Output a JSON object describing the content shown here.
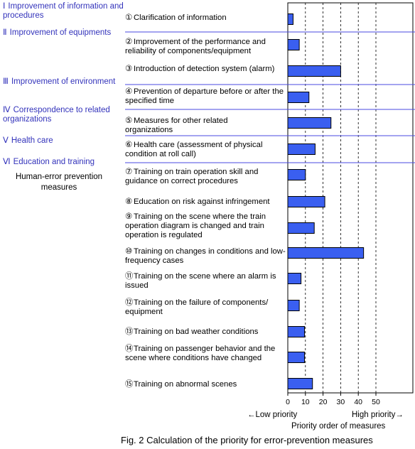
{
  "categories": [
    {
      "num": "Ⅰ",
      "label": "Improvement of information and procedures"
    },
    {
      "num": "Ⅱ",
      "label": "Improvement of equipments"
    },
    {
      "num": "Ⅲ",
      "label": "Improvement of environment"
    },
    {
      "num": "Ⅳ",
      "label": "Correspondence to related organizations"
    },
    {
      "num": "Ⅴ",
      "label": "Health care"
    },
    {
      "num": "Ⅵ",
      "label": "Education and training"
    }
  ],
  "group_label": "Human-error prevention measures",
  "measures": [
    {
      "num": "①",
      "label": "Clarification of information"
    },
    {
      "num": "②",
      "label": "Improvement of the performance and reliability of components/equipment"
    },
    {
      "num": "③",
      "label": "Introduction of detection system (alarm)"
    },
    {
      "num": "④",
      "label": "Prevention of departure before or after the specified time"
    },
    {
      "num": "⑤",
      "label": "Measures for other related organizations"
    },
    {
      "num": "⑥",
      "label": "Health care (assessment of physical condition at roll call)"
    },
    {
      "num": "⑦",
      "label": "Training on train operation skill and guidance on correct procedures"
    },
    {
      "num": "⑧",
      "label": "Education on risk against infringement"
    },
    {
      "num": "⑨",
      "label": "Training on the scene where the train operation diagram is changed and train operation is regulated"
    },
    {
      "num": "⑩",
      "label": "Training on changes in conditions and low-frequency cases"
    },
    {
      "num": "⑪",
      "label": "Training on the scene where an alarm is issued"
    },
    {
      "num": "⑫",
      "label": "Training on the failure of components/ equipment"
    },
    {
      "num": "⑬",
      "label": "Training on bad weather conditions"
    },
    {
      "num": "⑭",
      "label": "Training on passenger behavior and the scene where conditions have changed"
    },
    {
      "num": "⑮",
      "label": "Training on abnormal scenes"
    }
  ],
  "axis": {
    "low_label": "Low priority",
    "high_label": "High priority",
    "title": "Priority order of measures"
  },
  "caption": "Fig. 2  Calculation of the priority for error-prevention measures",
  "colors": {
    "bar": "#3a5ff0",
    "category_text": "#3333bb",
    "separator": "#4a4ae0"
  },
  "chart_data": {
    "type": "bar",
    "orientation": "horizontal",
    "categories": [
      "①",
      "②",
      "③",
      "④",
      "⑤",
      "⑥",
      "⑦",
      "⑧",
      "⑨",
      "⑩",
      "⑪",
      "⑫",
      "⑬",
      "⑭",
      "⑮"
    ],
    "values": [
      3,
      6.5,
      30,
      12,
      24.5,
      15.5,
      10,
      21,
      15,
      43,
      7.5,
      6.5,
      9.5,
      9.5,
      14
    ],
    "xlim": [
      0,
      50
    ],
    "xticks": [
      0,
      10,
      20,
      30,
      40,
      50
    ],
    "grid": "dashed vertical",
    "xlabel": "Priority order of measures"
  }
}
